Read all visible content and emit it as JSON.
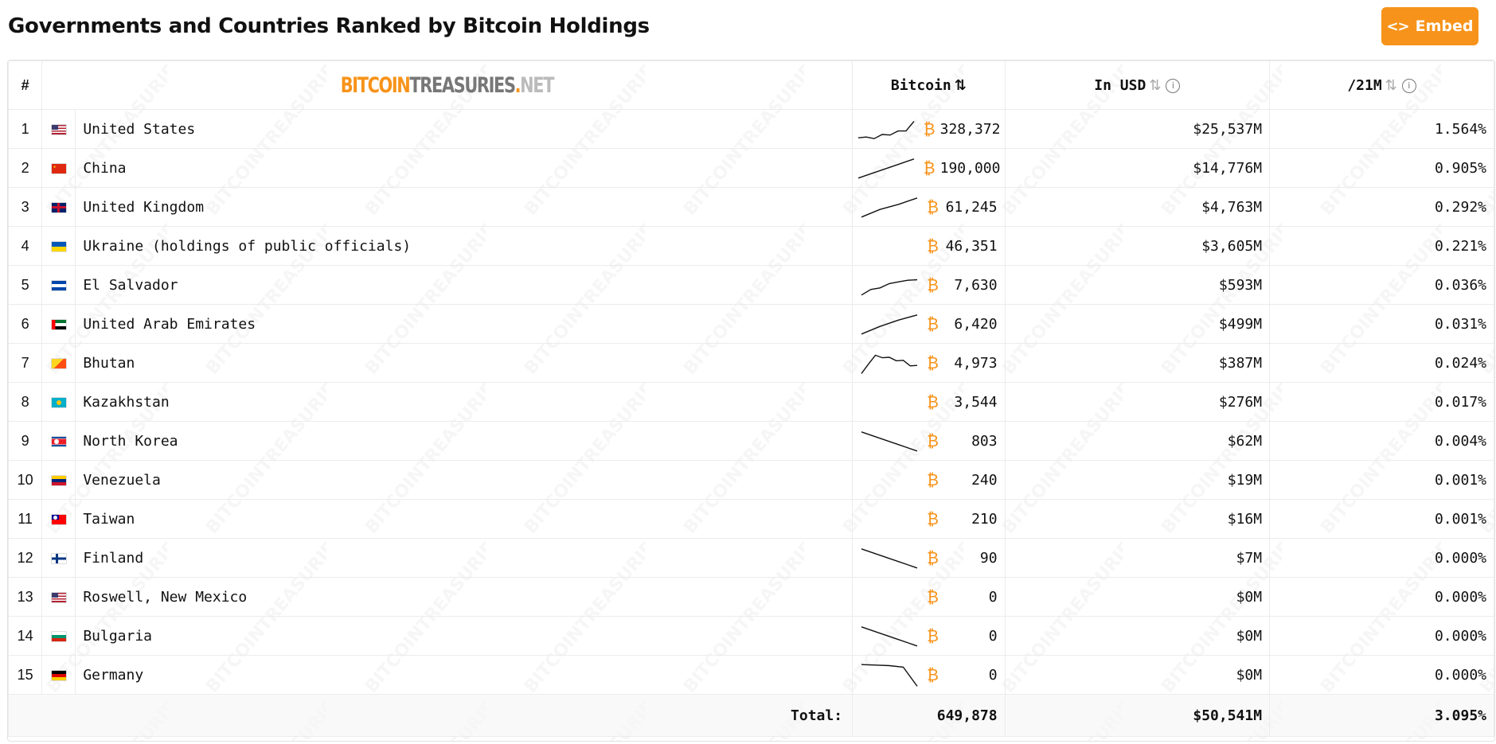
{
  "page": {
    "title": "Governments and Countries Ranked by Bitcoin Holdings",
    "embed_label": "Embed"
  },
  "colors": {
    "accent": "#f7931a"
  },
  "watermark_text": "BITCOINTREASURIES.NET",
  "table": {
    "headers": {
      "rank": "#",
      "logo": {
        "part1": "BITCOIN",
        "part2": "TREASURIES",
        "part3": ".",
        "part4": "NET"
      },
      "bitcoin": "Bitcoin",
      "usd": "In USD",
      "supply": "/21M"
    },
    "btc_symbol": "₿",
    "rows": [
      {
        "rank": "1",
        "flag": "us",
        "name": "United States",
        "btc": "328,372",
        "usd": "$25,537M",
        "pct": "1.564%",
        "trend": [
          0.85,
          0.82,
          0.88,
          0.72,
          0.74,
          0.58,
          0.58,
          0.2
        ]
      },
      {
        "rank": "2",
        "flag": "cn",
        "name": "China",
        "btc": "190,000",
        "usd": "$14,776M",
        "pct": "0.905%",
        "trend": [
          0.9,
          0.65,
          0.4,
          0.15
        ]
      },
      {
        "rank": "3",
        "flag": "gb",
        "name": "United Kingdom",
        "btc": "61,245",
        "usd": "$4,763M",
        "pct": "0.292%",
        "trend": [
          0.9,
          0.6,
          0.4,
          0.15
        ]
      },
      {
        "rank": "4",
        "flag": "ua",
        "name": "Ukraine (holdings of public officials)",
        "btc": "46,351",
        "usd": "$3,605M",
        "pct": "0.221%",
        "trend": []
      },
      {
        "rank": "5",
        "flag": "sv",
        "name": "El Salvador",
        "btc": "7,630",
        "usd": "$593M",
        "pct": "0.036%",
        "trend": [
          0.9,
          0.68,
          0.62,
          0.45,
          0.38,
          0.32,
          0.3
        ]
      },
      {
        "rank": "6",
        "flag": "ae",
        "name": "United Arab Emirates",
        "btc": "6,420",
        "usd": "$499M",
        "pct": "0.031%",
        "trend": [
          0.9,
          0.6,
          0.35,
          0.15
        ]
      },
      {
        "rank": "7",
        "flag": "bt",
        "name": "Bhutan",
        "btc": "4,973",
        "usd": "$387M",
        "pct": "0.024%",
        "trend": [
          0.92,
          0.55,
          0.2,
          0.3,
          0.28,
          0.42,
          0.4,
          0.62,
          0.6
        ]
      },
      {
        "rank": "8",
        "flag": "kz",
        "name": "Kazakhstan",
        "btc": "3,544",
        "usd": "$276M",
        "pct": "0.017%",
        "trend": []
      },
      {
        "rank": "9",
        "flag": "kp",
        "name": "North Korea",
        "btc": "803",
        "usd": "$62M",
        "pct": "0.004%",
        "trend": [
          0.15,
          0.4,
          0.65,
          0.9
        ]
      },
      {
        "rank": "10",
        "flag": "ve",
        "name": "Venezuela",
        "btc": "240",
        "usd": "$19M",
        "pct": "0.001%",
        "trend": []
      },
      {
        "rank": "11",
        "flag": "tw",
        "name": "Taiwan",
        "btc": "210",
        "usd": "$16M",
        "pct": "0.001%",
        "trend": []
      },
      {
        "rank": "12",
        "flag": "fi",
        "name": "Finland",
        "btc": "90",
        "usd": "$7M",
        "pct": "0.000%",
        "trend": [
          0.15,
          0.4,
          0.65,
          0.9
        ]
      },
      {
        "rank": "13",
        "flag": "us",
        "name": "Roswell, New Mexico",
        "btc": "0",
        "usd": "$0M",
        "pct": "0.000%",
        "trend": []
      },
      {
        "rank": "14",
        "flag": "bg",
        "name": "Bulgaria",
        "btc": "0",
        "usd": "$0M",
        "pct": "0.000%",
        "trend": [
          0.15,
          0.4,
          0.65,
          0.9
        ]
      },
      {
        "rank": "15",
        "flag": "de",
        "name": "Germany",
        "btc": "0",
        "usd": "$0M",
        "pct": "0.000%",
        "trend": [
          0.1,
          0.12,
          0.14,
          0.2,
          0.95
        ]
      }
    ],
    "footer": {
      "label": "Total:",
      "btc": "649,878",
      "usd": "$50,541M",
      "pct": "3.095%"
    }
  }
}
